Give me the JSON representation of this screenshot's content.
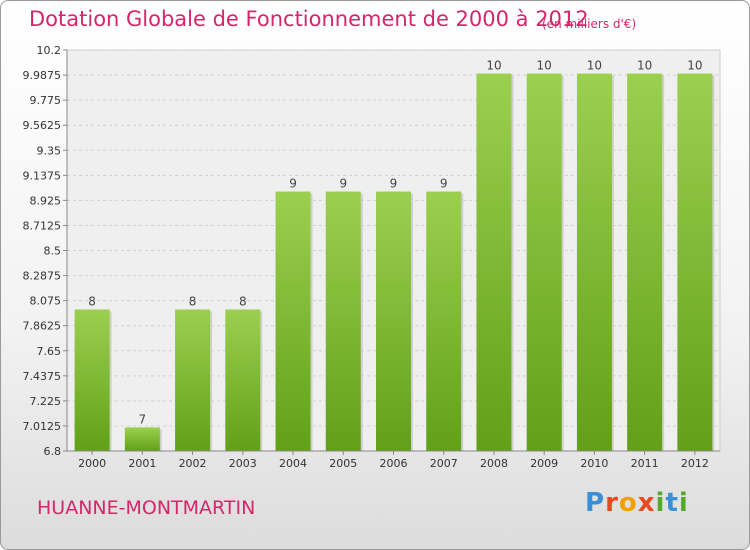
{
  "chart_data": {
    "type": "bar",
    "title": "Dotation Globale de Fonctionnement de 2000 à 2012",
    "subtitle": "(en milliers d'€)",
    "categories": [
      "2000",
      "2001",
      "2002",
      "2003",
      "2004",
      "2005",
      "2006",
      "2007",
      "2008",
      "2009",
      "2010",
      "2011",
      "2012"
    ],
    "values": [
      8,
      7,
      8,
      8,
      9,
      9,
      9,
      9,
      10,
      10,
      10,
      10,
      10
    ],
    "ylim": [
      6.8,
      10.2
    ],
    "yticks": [
      "10.2",
      "9.9875",
      "9.775",
      "9.5625",
      "9.35",
      "9.1375",
      "8.925",
      "8.7125",
      "8.5",
      "8.2875",
      "8.075",
      "7.8625",
      "7.65",
      "7.4375",
      "7.225",
      "7.0125",
      "6.8"
    ],
    "grid": true,
    "bar_color": "#8cc63f"
  },
  "footer": {
    "place": "HUANNE-MONTMARTIN",
    "logo": [
      "P",
      "r",
      "o",
      "x",
      "i",
      "t",
      "i"
    ]
  }
}
